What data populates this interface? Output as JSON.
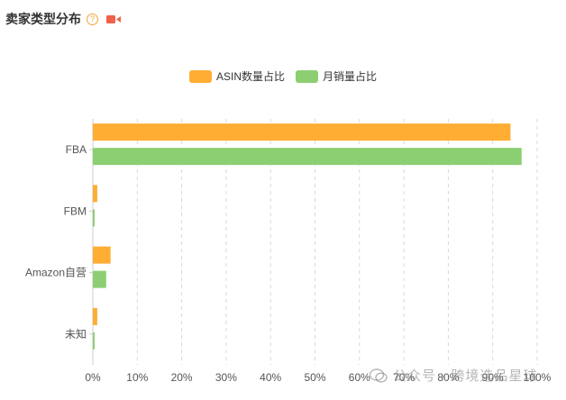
{
  "header": {
    "title": "卖家类型分布",
    "help_icon": "question-circle-icon",
    "video_icon": "video-camera-icon"
  },
  "colors": {
    "asin": "#ffad33",
    "sales": "#8ccf73",
    "grid": "#d9d9d9",
    "axis": "#555555",
    "accent_icon": "#f0614a"
  },
  "watermark": {
    "text": "公众号 · 跨境选品星球"
  },
  "chart_data": {
    "type": "bar",
    "orientation": "horizontal",
    "categories": [
      "FBA",
      "FBM",
      "Amazon自营",
      "未知"
    ],
    "series": [
      {
        "name": "ASIN数量占比",
        "values": [
          94,
          1,
          4,
          1
        ]
      },
      {
        "name": "月销量占比",
        "values": [
          96.5,
          0.4,
          3,
          0.4
        ]
      }
    ],
    "x_ticks": [
      "0%",
      "10%",
      "20%",
      "30%",
      "40%",
      "50%",
      "60%",
      "70%",
      "80%",
      "90%",
      "100%"
    ],
    "xlim": [
      0,
      100
    ],
    "grid": true,
    "legend_position": "top-center"
  }
}
